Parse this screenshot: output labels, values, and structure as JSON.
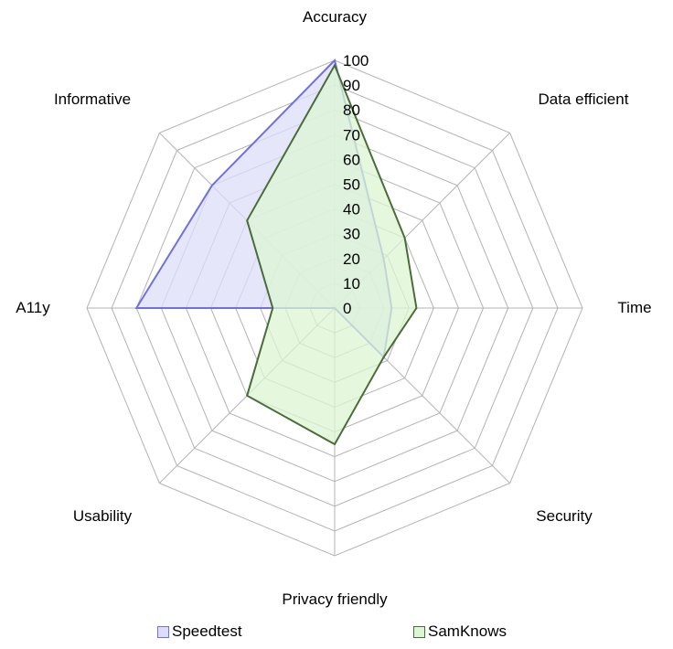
{
  "chart_data": {
    "type": "radar",
    "title": "",
    "categories": [
      "Accuracy",
      "Data efficient",
      "Time",
      "Security",
      "Privacy friendly",
      "Usability",
      "A11y",
      "Informative"
    ],
    "series": [
      {
        "name": "Speedtest",
        "values": [
          100,
          28,
          23,
          28,
          0,
          0,
          80,
          70
        ],
        "fill": "#ddddfa",
        "stroke": "#7070e0"
      },
      {
        "name": "SamKnows",
        "values": [
          98,
          40,
          33,
          28,
          55,
          50,
          25,
          50
        ],
        "fill": "#dcf5d3",
        "stroke": "#4a6b3a"
      }
    ],
    "radial_axis": {
      "min": 0,
      "max": 100,
      "step": 10,
      "ticks": [
        "0",
        "10",
        "20",
        "30",
        "40",
        "50",
        "60",
        "70",
        "80",
        "90",
        "100"
      ]
    },
    "grid": true,
    "legend_position": "bottom"
  },
  "legend": [
    {
      "label": "Speedtest",
      "color": "#ddddfa",
      "border": "#7070e0"
    },
    {
      "label": "SamKnows",
      "color": "#dcf5d3",
      "border": "#4a6b3a"
    }
  ]
}
